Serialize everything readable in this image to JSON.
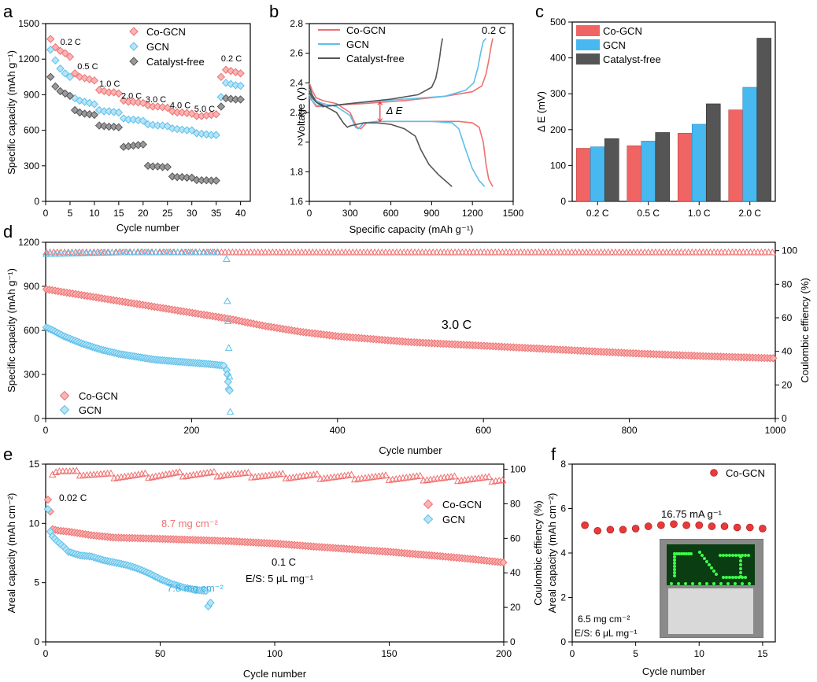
{
  "colors": {
    "co": "#f07070",
    "co_fill": "#f9b5b5",
    "gcn": "#5bc0eb",
    "gcn_fill": "#b8e4f7",
    "cf": "#555555",
    "cf_fill": "#9a9a9a"
  },
  "chart_data": [
    {
      "panel": "a",
      "type": "scatter",
      "xlabel": "Cycle number",
      "ylabel": "Specific capacity (mAh g⁻¹)",
      "xlim": [
        0,
        42
      ],
      "ylim": [
        0,
        1500
      ],
      "xticks": [
        0,
        5,
        10,
        15,
        20,
        25,
        30,
        35,
        40
      ],
      "yticks": [
        0,
        300,
        600,
        900,
        1200,
        1500
      ],
      "rate_labels": [
        {
          "text": "0.2 C",
          "x": 3,
          "y": 1320
        },
        {
          "text": "0.5 C",
          "x": 6.5,
          "y": 1115
        },
        {
          "text": "1.0 C",
          "x": 11,
          "y": 970
        },
        {
          "text": "2.0 C",
          "x": 15.5,
          "y": 865
        },
        {
          "text": "3.0 C",
          "x": 20.5,
          "y": 835
        },
        {
          "text": "4.0 C",
          "x": 25.5,
          "y": 785
        },
        {
          "text": "5.0 C",
          "x": 30.5,
          "y": 755
        },
        {
          "text": "0.2 C",
          "x": 36,
          "y": 1180
        }
      ],
      "legend": [
        "Co-GCN",
        "GCN",
        "Catalyst-free"
      ],
      "series": [
        {
          "name": "Co-GCN",
          "x": [
            1,
            2,
            3,
            4,
            5,
            6,
            7,
            8,
            9,
            10,
            11,
            12,
            13,
            14,
            15,
            16,
            17,
            18,
            19,
            20,
            21,
            22,
            23,
            24,
            25,
            26,
            27,
            28,
            29,
            30,
            31,
            32,
            33,
            34,
            35,
            36,
            37,
            38,
            39,
            40
          ],
          "y": [
            1370,
            1300,
            1270,
            1250,
            1220,
            1080,
            1050,
            1040,
            1030,
            1020,
            940,
            930,
            920,
            920,
            910,
            850,
            840,
            840,
            835,
            830,
            810,
            800,
            800,
            795,
            790,
            760,
            750,
            750,
            745,
            740,
            720,
            720,
            725,
            730,
            735,
            1050,
            1110,
            1100,
            1090,
            1080
          ]
        },
        {
          "name": "GCN",
          "x": [
            1,
            2,
            3,
            4,
            5,
            6,
            7,
            8,
            9,
            10,
            11,
            12,
            13,
            14,
            15,
            16,
            17,
            18,
            19,
            20,
            21,
            22,
            23,
            24,
            25,
            26,
            27,
            28,
            29,
            30,
            31,
            32,
            33,
            34,
            35,
            36,
            37,
            38,
            39,
            40
          ],
          "y": [
            1280,
            1190,
            1120,
            1080,
            1050,
            870,
            850,
            840,
            830,
            820,
            770,
            760,
            760,
            755,
            750,
            700,
            690,
            690,
            685,
            680,
            650,
            645,
            640,
            640,
            635,
            615,
            610,
            605,
            600,
            600,
            575,
            570,
            565,
            560,
            560,
            880,
            1000,
            990,
            980,
            975
          ]
        },
        {
          "name": "Catalyst-free",
          "x": [
            1,
            2,
            3,
            4,
            5,
            6,
            7,
            8,
            9,
            10,
            11,
            12,
            13,
            14,
            15,
            16,
            17,
            18,
            19,
            20,
            21,
            22,
            23,
            24,
            25,
            26,
            27,
            28,
            29,
            30,
            31,
            32,
            33,
            34,
            35,
            36,
            37,
            38,
            39,
            40
          ],
          "y": [
            1050,
            970,
            930,
            910,
            890,
            770,
            750,
            740,
            735,
            730,
            640,
            635,
            630,
            630,
            625,
            460,
            465,
            470,
            475,
            480,
            300,
            295,
            295,
            290,
            290,
            210,
            205,
            205,
            200,
            200,
            180,
            178,
            178,
            175,
            175,
            800,
            870,
            865,
            860,
            860
          ]
        }
      ]
    },
    {
      "panel": "b",
      "type": "line",
      "xlabel": "Specific capacity (mAh g⁻¹)",
      "ylabel": "Voltage (V)",
      "xlim": [
        0,
        1500
      ],
      "ylim": [
        1.6,
        2.8
      ],
      "xticks": [
        0,
        300,
        600,
        900,
        1200,
        1500
      ],
      "yticks": [
        1.6,
        1.8,
        2.0,
        2.2,
        2.4,
        2.6,
        2.8
      ],
      "legend": [
        "Co-GCN",
        "GCN",
        "Catalyst-free"
      ],
      "rate_label": "0.2 C",
      "delta_label": "Δ E",
      "series": [
        {
          "name": "Co-GCN discharge",
          "x": [
            0,
            20,
            50,
            100,
            200,
            300,
            350,
            380,
            420,
            500,
            700,
            900,
            1100,
            1200,
            1250,
            1280,
            1300,
            1320,
            1350
          ],
          "y": [
            2.4,
            2.35,
            2.3,
            2.28,
            2.26,
            2.2,
            2.1,
            2.09,
            2.13,
            2.14,
            2.14,
            2.14,
            2.14,
            2.13,
            2.1,
            2.0,
            1.85,
            1.75,
            1.7
          ]
        },
        {
          "name": "Co-GCN charge",
          "x": [
            0,
            20,
            50,
            100,
            200,
            400,
            700,
            1000,
            1200,
            1270,
            1300,
            1320,
            1340,
            1350
          ],
          "y": [
            2.3,
            2.28,
            2.24,
            2.24,
            2.25,
            2.26,
            2.28,
            2.31,
            2.34,
            2.38,
            2.46,
            2.55,
            2.66,
            2.7
          ]
        },
        {
          "name": "GCN discharge",
          "x": [
            0,
            20,
            50,
            100,
            200,
            300,
            340,
            360,
            400,
            500,
            700,
            900,
            1050,
            1100,
            1150,
            1200,
            1250,
            1290
          ],
          "y": [
            2.36,
            2.32,
            2.28,
            2.26,
            2.24,
            2.18,
            2.1,
            2.09,
            2.13,
            2.14,
            2.14,
            2.14,
            2.13,
            2.09,
            1.95,
            1.82,
            1.74,
            1.7
          ]
        },
        {
          "name": "GCN charge",
          "x": [
            0,
            20,
            50,
            100,
            200,
            400,
            700,
            1000,
            1150,
            1210,
            1240,
            1260,
            1280,
            1300
          ],
          "y": [
            2.32,
            2.28,
            2.25,
            2.24,
            2.25,
            2.27,
            2.29,
            2.31,
            2.35,
            2.4,
            2.5,
            2.6,
            2.68,
            2.7
          ]
        },
        {
          "name": "Catalyst-free discharge",
          "x": [
            0,
            20,
            50,
            100,
            200,
            250,
            280,
            300,
            400,
            500,
            600,
            700,
            780,
            820,
            880,
            950,
            1000,
            1050
          ],
          "y": [
            2.34,
            2.3,
            2.27,
            2.25,
            2.2,
            2.13,
            2.1,
            2.11,
            2.13,
            2.13,
            2.12,
            2.09,
            2.04,
            1.95,
            1.85,
            1.78,
            1.74,
            1.7
          ]
        },
        {
          "name": "Catalyst-free charge",
          "x": [
            0,
            20,
            50,
            100,
            200,
            400,
            600,
            800,
            900,
            930,
            950,
            960,
            970,
            980
          ],
          "y": [
            2.38,
            2.32,
            2.27,
            2.24,
            2.25,
            2.27,
            2.29,
            2.32,
            2.37,
            2.43,
            2.52,
            2.58,
            2.65,
            2.7
          ]
        }
      ]
    },
    {
      "panel": "c",
      "type": "bar",
      "ylabel": "Δ E (mV)",
      "categories": [
        "0.2 C",
        "0.5 C",
        "1.0 C",
        "2.0 C"
      ],
      "ylim": [
        0,
        500
      ],
      "yticks": [
        0,
        100,
        200,
        300,
        400,
        500
      ],
      "legend": [
        "Co-GCN",
        "GCN",
        "Catalyst-free"
      ],
      "series": [
        {
          "name": "Co-GCN",
          "values": [
            148,
            155,
            190,
            255
          ]
        },
        {
          "name": "GCN",
          "values": [
            152,
            168,
            215,
            318
          ]
        },
        {
          "name": "Catalyst-free",
          "values": [
            175,
            192,
            272,
            455
          ]
        }
      ]
    },
    {
      "panel": "d",
      "type": "scatter",
      "xlabel": "Cycle number",
      "ylabel": "Specific capacity (mAh g⁻¹)",
      "y2label": "Coulombic effiency (%)",
      "xlim": [
        0,
        1000
      ],
      "ylim": [
        0,
        1200
      ],
      "y2lim": [
        0,
        105
      ],
      "xticks": [
        0,
        200,
        400,
        600,
        800,
        1000
      ],
      "yticks": [
        0,
        300,
        600,
        900,
        1200
      ],
      "y2ticks": [
        0,
        20,
        40,
        60,
        80,
        100
      ],
      "rate_label": "3.0 C",
      "legend": [
        "Co-GCN",
        "GCN"
      ],
      "series": [
        {
          "name": "Co-GCN capacity",
          "x": [
            1,
            25,
            50,
            100,
            150,
            200,
            250,
            300,
            350,
            400,
            500,
            600,
            700,
            800,
            900,
            1000
          ],
          "y": [
            880,
            860,
            840,
            800,
            760,
            720,
            680,
            630,
            590,
            560,
            520,
            495,
            470,
            445,
            425,
            410
          ]
        },
        {
          "name": "GCN capacity",
          "x": [
            1,
            10,
            25,
            50,
            75,
            100,
            125,
            150,
            175,
            200,
            225,
            245
          ],
          "y": [
            620,
            600,
            560,
            510,
            470,
            440,
            420,
            400,
            390,
            380,
            370,
            360
          ]
        },
        {
          "name": "GCN capacity tail",
          "x": [
            248,
            249,
            250,
            251,
            252
          ],
          "y": [
            330,
            300,
            250,
            200,
            190
          ]
        },
        {
          "name": "Co-GCN CE",
          "x": [
            1,
            50,
            100,
            200,
            300,
            400,
            600,
            800,
            1000
          ],
          "y2": [
            99,
            99,
            99,
            99,
            99,
            99,
            99,
            99,
            99
          ]
        },
        {
          "name": "GCN CE",
          "x": [
            1,
            50,
            100,
            150,
            200,
            240
          ],
          "y2": [
            98,
            98.5,
            99,
            99,
            99,
            99
          ]
        },
        {
          "name": "GCN CE outliers",
          "x": [
            248,
            249,
            250,
            251,
            252,
            253
          ],
          "y2": [
            95,
            70,
            58,
            42,
            25,
            4
          ]
        }
      ]
    },
    {
      "panel": "e",
      "type": "scatter",
      "xlabel": "Cycle number",
      "ylabel": "Areal capacity (mAh cm⁻²)",
      "y2label": "Coulombic effiency (%)",
      "xlim": [
        0,
        200
      ],
      "ylim": [
        0,
        15
      ],
      "y2lim": [
        0,
        103
      ],
      "xticks": [
        0,
        50,
        100,
        150,
        200
      ],
      "yticks": [
        0,
        5,
        10,
        15
      ],
      "y2ticks": [
        0,
        20,
        40,
        60,
        80,
        100
      ],
      "annotations": [
        "0.02 C",
        "8.7 mg cm⁻²",
        "7.8 mg cm⁻²",
        "0.1 C",
        "E/S: 5 μL mg⁻¹"
      ],
      "legend": [
        "Co-GCN",
        "GCN"
      ],
      "series": [
        {
          "name": "Co-GCN capacity",
          "x": [
            1,
            2,
            3,
            5,
            10,
            20,
            30,
            50,
            80,
            100,
            120,
            150,
            180,
            200
          ],
          "y": [
            12,
            11,
            9.5,
            9.4,
            9.3,
            9.0,
            8.8,
            8.7,
            8.5,
            8.3,
            8.0,
            7.6,
            7.1,
            6.7
          ]
        },
        {
          "name": "GCN capacity",
          "x": [
            1,
            2,
            3,
            5,
            8,
            10,
            15,
            20,
            25,
            30,
            35,
            40,
            45,
            50,
            55,
            60,
            65,
            70,
            71,
            72
          ],
          "y": [
            11.2,
            9.3,
            8.9,
            8.5,
            8.0,
            7.6,
            7.3,
            7.2,
            6.9,
            6.7,
            6.5,
            6.2,
            5.8,
            5.3,
            4.9,
            4.6,
            4.4,
            4.3,
            3.0,
            3.3
          ]
        },
        {
          "name": "Co-GCN CE",
          "x": [
            1,
            5,
            10,
            20,
            30,
            40,
            60,
            80,
            100,
            150,
            200
          ],
          "y2": [
            96,
            99,
            98,
            97,
            96,
            96,
            97,
            97,
            96,
            95,
            94
          ]
        }
      ]
    },
    {
      "panel": "f",
      "type": "scatter",
      "xlabel": "Cycle number",
      "ylabel": "Areal capacity (mAh cm⁻²)",
      "xlim": [
        0,
        16
      ],
      "ylim": [
        0,
        8
      ],
      "xticks": [
        0,
        5,
        10,
        15
      ],
      "yticks": [
        0,
        2,
        4,
        6,
        8
      ],
      "annotations": [
        "16.75 mA g⁻¹",
        "6.5 mg cm⁻²",
        "E/S: 6 μL mg⁻¹"
      ],
      "legend": [
        "Co-GCN"
      ],
      "series": [
        {
          "name": "Co-GCN",
          "x": [
            1,
            2,
            3,
            4,
            5,
            6,
            7,
            8,
            9,
            10,
            11,
            12,
            13,
            14,
            15
          ],
          "y": [
            5.25,
            5.0,
            5.05,
            5.05,
            5.1,
            5.2,
            5.25,
            5.3,
            5.25,
            5.25,
            5.2,
            5.2,
            5.15,
            5.15,
            5.1
          ]
        }
      ]
    }
  ],
  "panel_labels": [
    "a",
    "b",
    "c",
    "d",
    "e",
    "f"
  ]
}
